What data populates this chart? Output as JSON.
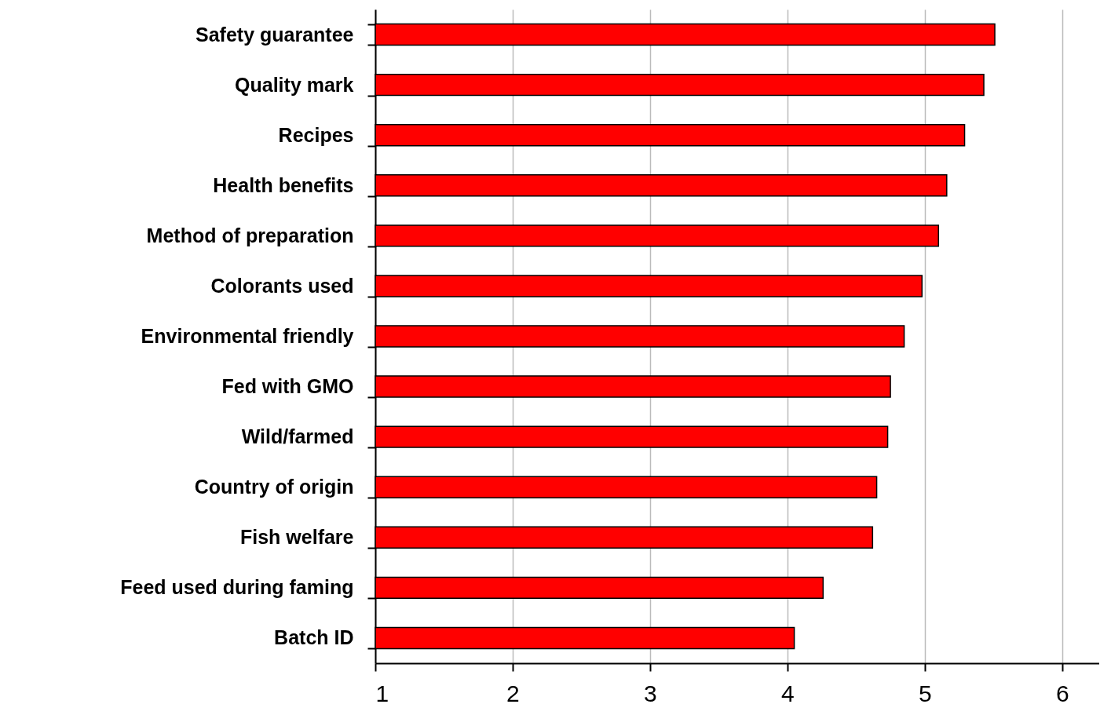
{
  "chart_data": {
    "type": "bar",
    "orientation": "horizontal",
    "categories": [
      "Safety guarantee",
      "Quality mark",
      "Recipes",
      "Health benefits",
      "Method of preparation",
      "Colorants used",
      "Environmental friendly",
      "Fed with GMO",
      "Wild/farmed",
      "Country of origin",
      "Fish welfare",
      "Feed used during faming",
      "Batch ID"
    ],
    "values": [
      5.51,
      5.43,
      5.29,
      5.16,
      5.1,
      4.98,
      4.85,
      4.75,
      4.73,
      4.65,
      4.62,
      4.26,
      4.05
    ],
    "color": "#ff0000",
    "xlim": [
      1,
      6.27
    ],
    "xticks": [
      1,
      2,
      3,
      4,
      5,
      6
    ],
    "grid": "x"
  }
}
